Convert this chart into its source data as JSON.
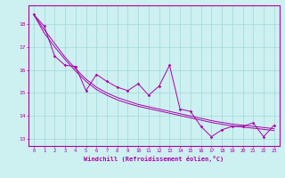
{
  "title": "",
  "xlabel": "Windchill (Refroidissement éolien,°C)",
  "ylabel": "",
  "bg_color": "#cdf0f0",
  "line_color": "#aa00aa",
  "grid_color": "#a0d8d8",
  "xlim": [
    -0.5,
    23.5
  ],
  "ylim": [
    12.7,
    18.8
  ],
  "xticks": [
    0,
    1,
    2,
    3,
    4,
    5,
    6,
    7,
    8,
    9,
    10,
    11,
    12,
    13,
    14,
    15,
    16,
    17,
    18,
    19,
    20,
    21,
    22,
    23
  ],
  "yticks": [
    13,
    14,
    15,
    16,
    17,
    18
  ],
  "series1": [
    18.4,
    17.9,
    16.6,
    16.2,
    16.15,
    15.1,
    15.8,
    15.5,
    15.25,
    15.1,
    15.4,
    14.9,
    15.3,
    16.2,
    14.3,
    14.2,
    13.55,
    13.1,
    13.4,
    13.55,
    13.55,
    13.7,
    13.1,
    13.6
  ],
  "series_smooth1": [
    18.4,
    17.75,
    17.15,
    16.55,
    16.05,
    15.6,
    15.25,
    15.0,
    14.8,
    14.65,
    14.5,
    14.4,
    14.3,
    14.2,
    14.1,
    14.0,
    13.9,
    13.8,
    13.72,
    13.65,
    13.6,
    13.55,
    13.5,
    13.45
  ],
  "series_smooth2": [
    18.4,
    17.6,
    17.0,
    16.45,
    15.95,
    15.5,
    15.15,
    14.9,
    14.7,
    14.55,
    14.42,
    14.32,
    14.22,
    14.12,
    14.02,
    13.92,
    13.82,
    13.72,
    13.64,
    13.57,
    13.52,
    13.47,
    13.42,
    13.37
  ]
}
